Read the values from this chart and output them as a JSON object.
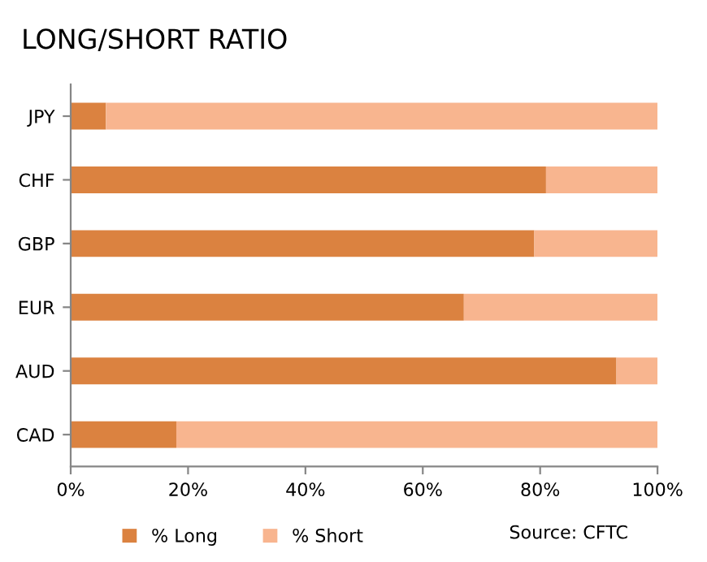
{
  "chart_data": {
    "type": "bar",
    "orientation": "horizontal",
    "stacked": true,
    "title": "LONG/SHORT RATIO",
    "categories": [
      "JPY",
      "CHF",
      "GBP",
      "EUR",
      "AUD",
      "CAD"
    ],
    "series": [
      {
        "name": "% Long",
        "color": "#db8240",
        "values": [
          6,
          81,
          79,
          67,
          93,
          18
        ]
      },
      {
        "name": "% Short",
        "color": "#f8b58f",
        "values": [
          94,
          19,
          21,
          33,
          7,
          82
        ]
      }
    ],
    "xlim": [
      0,
      100
    ],
    "xticks": [
      {
        "value": 0,
        "label": "0%"
      },
      {
        "value": 20,
        "label": "20%"
      },
      {
        "value": 40,
        "label": "40%"
      },
      {
        "value": 60,
        "label": "60%"
      },
      {
        "value": 80,
        "label": "80%"
      },
      {
        "value": 100,
        "label": "100%"
      }
    ],
    "grid": false,
    "legend": "bottom",
    "annotations": [
      "Source: CFTC"
    ]
  }
}
